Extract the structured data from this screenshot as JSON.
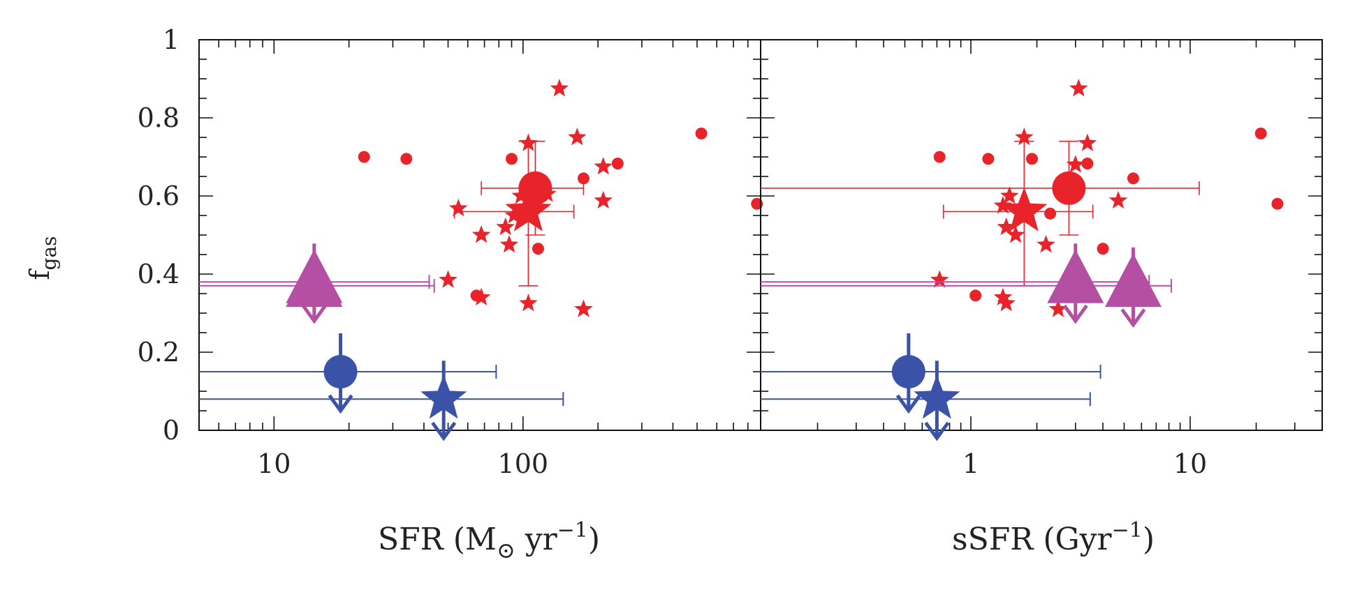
{
  "colors": {
    "red": "#e8232a",
    "blue": "#3a52a8",
    "magenta": "#b44fa3",
    "axis": "#111111"
  },
  "ylabel": {
    "main": "f",
    "sub": "gas"
  },
  "yticks": [
    "0",
    "0.2",
    "0.4",
    "0.6",
    "0.8",
    "1"
  ],
  "chart_data": [
    {
      "type": "scatter",
      "panel": "left",
      "xscale": "log",
      "xlim": [
        5,
        900
      ],
      "ylim": [
        0,
        1
      ],
      "xticks": [
        10,
        100
      ],
      "xtick_labels": [
        "10",
        "100"
      ],
      "xlabel_pre": "SFR (M",
      "xlabel_sym": "⊙",
      "xlabel_mid": " yr",
      "xlabel_sup": "−1",
      "xlabel_post": ")",
      "small_points": [
        {
          "x": 23,
          "y": 0.7,
          "m": "circle"
        },
        {
          "x": 34,
          "y": 0.695,
          "m": "circle"
        },
        {
          "x": 90,
          "y": 0.695,
          "m": "circle"
        },
        {
          "x": 175,
          "y": 0.645,
          "m": "circle"
        },
        {
          "x": 240,
          "y": 0.683,
          "m": "circle"
        },
        {
          "x": 520,
          "y": 0.76,
          "m": "circle"
        },
        {
          "x": 870,
          "y": 0.58,
          "m": "circle"
        },
        {
          "x": 65,
          "y": 0.345,
          "m": "circle"
        },
        {
          "x": 115,
          "y": 0.465,
          "m": "circle"
        },
        {
          "x": 140,
          "y": 0.875,
          "m": "star"
        },
        {
          "x": 105,
          "y": 0.735,
          "m": "star"
        },
        {
          "x": 165,
          "y": 0.75,
          "m": "star"
        },
        {
          "x": 210,
          "y": 0.675,
          "m": "star"
        },
        {
          "x": 210,
          "y": 0.588,
          "m": "star"
        },
        {
          "x": 55,
          "y": 0.568,
          "m": "star"
        },
        {
          "x": 68,
          "y": 0.5,
          "m": "star"
        },
        {
          "x": 88,
          "y": 0.475,
          "m": "star"
        },
        {
          "x": 85,
          "y": 0.52,
          "m": "star"
        },
        {
          "x": 92,
          "y": 0.55,
          "m": "star"
        },
        {
          "x": 98,
          "y": 0.6,
          "m": "star"
        },
        {
          "x": 125,
          "y": 0.605,
          "m": "star"
        },
        {
          "x": 50,
          "y": 0.385,
          "m": "star"
        },
        {
          "x": 68,
          "y": 0.34,
          "m": "star"
        },
        {
          "x": 105,
          "y": 0.325,
          "m": "star"
        },
        {
          "x": 175,
          "y": 0.31,
          "m": "star"
        }
      ],
      "big_points": [
        {
          "x": 112,
          "y": 0.62,
          "m": "circle",
          "c": "red",
          "xerr": [
            68,
            175
          ],
          "yerr": [
            0.5,
            0.74
          ]
        },
        {
          "x": 105,
          "y": 0.56,
          "m": "star",
          "c": "red",
          "xerr": [
            53,
            160
          ],
          "yerr": [
            0.37,
            0.74
          ]
        },
        {
          "x": 14.5,
          "y": 0.38,
          "m": "triangle",
          "c": "magenta",
          "upper": true,
          "xleft": true,
          "xmax": 42
        },
        {
          "x": 14.5,
          "y": 0.37,
          "m": "triangle",
          "c": "magenta",
          "upper": false,
          "xleft": true,
          "xmax": 44
        },
        {
          "x": 18.5,
          "y": 0.15,
          "m": "circle",
          "c": "blue",
          "upper": true,
          "xleft": true,
          "xmax": 78
        },
        {
          "x": 48,
          "y": 0.08,
          "m": "star",
          "c": "blue",
          "upper": true,
          "xleft": true,
          "xmax": 145
        }
      ]
    },
    {
      "type": "scatter",
      "panel": "right",
      "xscale": "log",
      "xlim": [
        0.11,
        40
      ],
      "ylim": [
        0,
        1
      ],
      "xticks": [
        1,
        10
      ],
      "xtick_labels": [
        "1",
        "10"
      ],
      "xlabel_pre": "sSFR (Gyr",
      "xlabel_sup": "−1",
      "xlabel_post": ")",
      "small_points": [
        {
          "x": 0.72,
          "y": 0.7,
          "m": "circle"
        },
        {
          "x": 1.2,
          "y": 0.695,
          "m": "circle"
        },
        {
          "x": 1.9,
          "y": 0.695,
          "m": "circle"
        },
        {
          "x": 3.4,
          "y": 0.683,
          "m": "circle"
        },
        {
          "x": 5.5,
          "y": 0.645,
          "m": "circle"
        },
        {
          "x": 21,
          "y": 0.76,
          "m": "circle"
        },
        {
          "x": 25,
          "y": 0.58,
          "m": "circle"
        },
        {
          "x": 1.05,
          "y": 0.345,
          "m": "circle"
        },
        {
          "x": 2.3,
          "y": 0.555,
          "m": "circle"
        },
        {
          "x": 4.0,
          "y": 0.465,
          "m": "circle"
        },
        {
          "x": 3.1,
          "y": 0.875,
          "m": "star"
        },
        {
          "x": 1.75,
          "y": 0.75,
          "m": "star"
        },
        {
          "x": 3.4,
          "y": 0.735,
          "m": "star"
        },
        {
          "x": 3.0,
          "y": 0.68,
          "m": "star"
        },
        {
          "x": 1.4,
          "y": 0.575,
          "m": "star"
        },
        {
          "x": 1.5,
          "y": 0.6,
          "m": "star"
        },
        {
          "x": 1.45,
          "y": 0.52,
          "m": "star"
        },
        {
          "x": 1.6,
          "y": 0.5,
          "m": "star"
        },
        {
          "x": 2.2,
          "y": 0.475,
          "m": "star"
        },
        {
          "x": 4.7,
          "y": 0.588,
          "m": "star"
        },
        {
          "x": 0.72,
          "y": 0.385,
          "m": "star"
        },
        {
          "x": 1.4,
          "y": 0.34,
          "m": "star"
        },
        {
          "x": 1.45,
          "y": 0.325,
          "m": "star"
        },
        {
          "x": 2.5,
          "y": 0.31,
          "m": "star"
        }
      ],
      "big_points": [
        {
          "x": 2.8,
          "y": 0.62,
          "m": "circle",
          "c": "red",
          "xerr": [
            0.11,
            11
          ],
          "yerr": [
            0.5,
            0.74
          ]
        },
        {
          "x": 1.75,
          "y": 0.56,
          "m": "star",
          "c": "red",
          "xerr": [
            0.75,
            3.6
          ],
          "yerr": [
            0.37,
            0.74
          ]
        },
        {
          "x": 3.0,
          "y": 0.38,
          "m": "triangle",
          "c": "magenta",
          "upper": true,
          "xleft": true,
          "xmax": 6.5
        },
        {
          "x": 5.5,
          "y": 0.37,
          "m": "triangle",
          "c": "magenta",
          "upper": true,
          "xleft": true,
          "xmax": 8.2
        },
        {
          "x": 0.52,
          "y": 0.15,
          "m": "circle",
          "c": "blue",
          "upper": true,
          "xleft": true,
          "xmax": 3.9
        },
        {
          "x": 0.7,
          "y": 0.08,
          "m": "star",
          "c": "blue",
          "upper": true,
          "xleft": true,
          "xmax": 3.5
        }
      ]
    }
  ]
}
